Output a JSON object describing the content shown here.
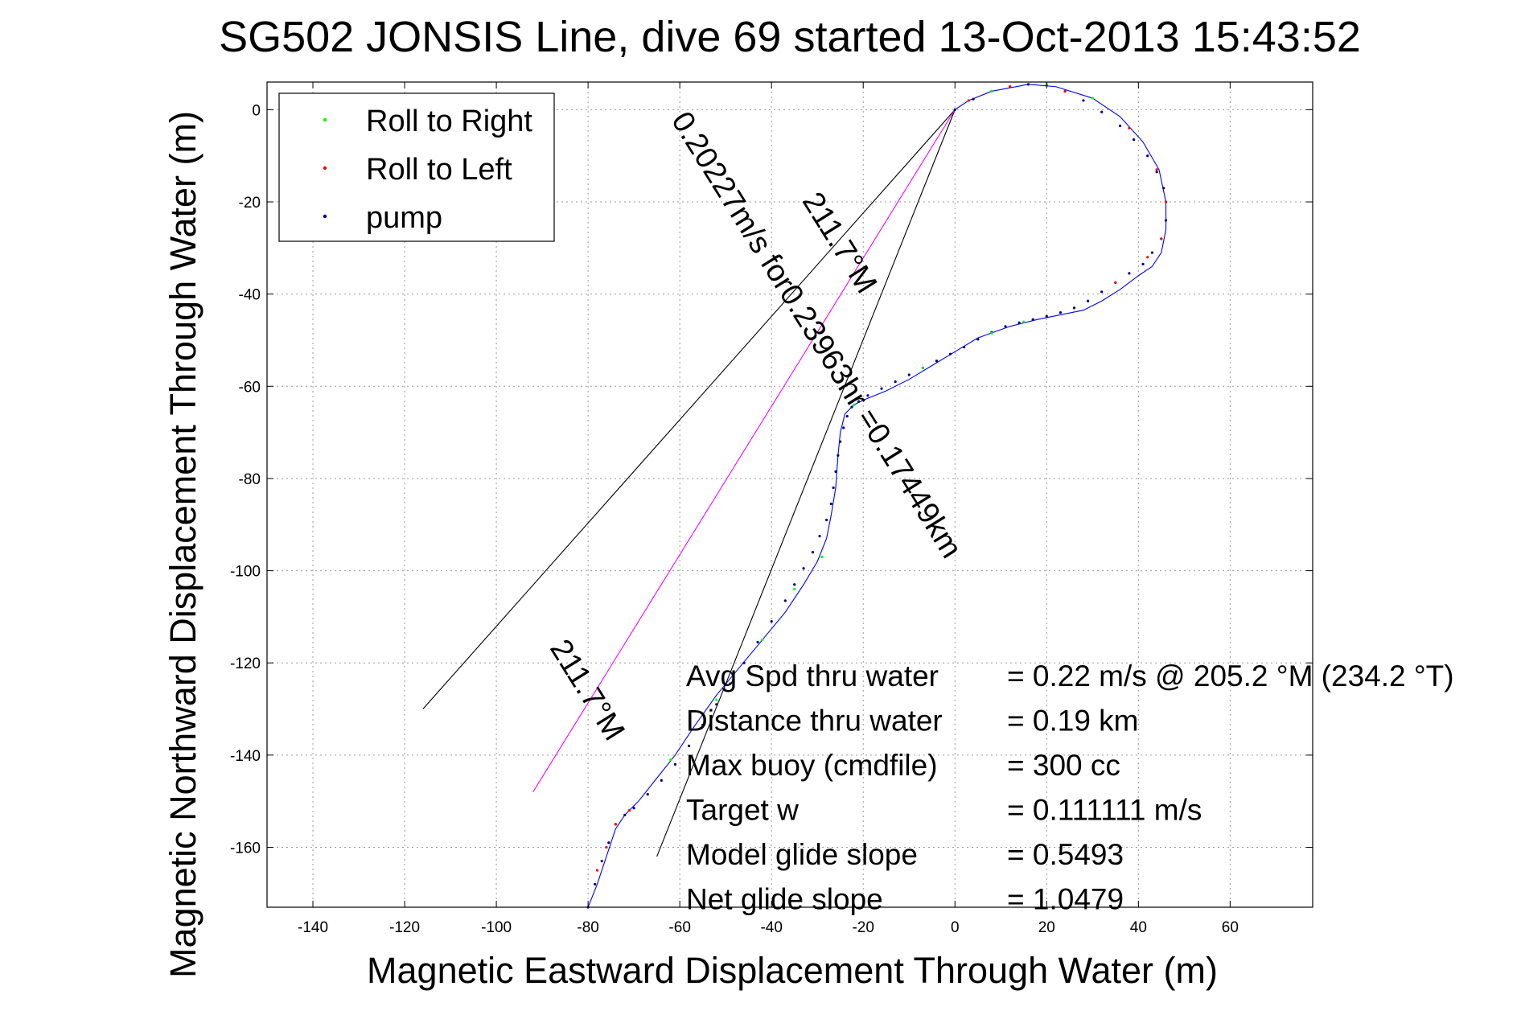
{
  "chart_data": {
    "type": "line",
    "title": "SG502 JONSIS Line, dive 69 started 13-Oct-2013 15:43:52",
    "xlabel": "Magnetic Eastward Displacement Through Water (m)",
    "ylabel": "Magnetic Northward Displacement Through Water (m)",
    "xlim": [
      -150,
      78
    ],
    "ylim": [
      -173,
      6
    ],
    "grid": true,
    "x_ticks": [
      -140,
      -120,
      -100,
      -80,
      -60,
      -40,
      -20,
      0,
      20,
      40,
      60
    ],
    "y_ticks": [
      0,
      -20,
      -40,
      -60,
      -80,
      -100,
      -120,
      -140,
      -160
    ],
    "x_tick_labels": [
      "-140",
      "-120",
      "-100",
      "-80",
      "-60",
      "-40",
      "-20",
      "0",
      "20",
      "40",
      "60"
    ],
    "y_tick_labels": [
      "0",
      "-20",
      "-40",
      "-60",
      "-80",
      "-100",
      "-120",
      "-140",
      "-160"
    ],
    "legend": {
      "placement": "top-left",
      "entries": [
        {
          "label": "Roll to Right",
          "color": "#00ff00"
        },
        {
          "label": "Roll to Left",
          "color": "#ff0000"
        },
        {
          "label": "pump",
          "color": "#000080"
        }
      ]
    },
    "series": [
      {
        "role": "track",
        "color": "#0000ff",
        "x": [
          0,
          3,
          8,
          16,
          22,
          30,
          36,
          41,
          44.5,
          46,
          46,
          45,
          43,
          40,
          36,
          32,
          28,
          23,
          18,
          12,
          5,
          0,
          -5,
          -10,
          -15,
          -20,
          -22,
          -24,
          -25,
          -25.5,
          -26,
          -27,
          -28,
          -30,
          -33,
          -37,
          -42,
          -47,
          -52,
          -57,
          -61,
          -65,
          -69,
          -72,
          -74,
          -76,
          -78,
          -80
        ],
        "y": [
          0,
          2,
          4,
          5.5,
          5,
          2.5,
          -1.5,
          -7,
          -13,
          -20,
          -26,
          -31,
          -34,
          -36,
          -39,
          -41.5,
          -43.5,
          -44.5,
          -45.5,
          -47,
          -49.5,
          -52.5,
          -55.5,
          -58.5,
          -61,
          -63,
          -64,
          -66,
          -70,
          -75,
          -82,
          -88,
          -93,
          -98,
          -103,
          -109,
          -115,
          -121,
          -127,
          -134,
          -140,
          -145,
          -150,
          -153,
          -156,
          -162,
          -168,
          -173
        ]
      },
      {
        "role": "pump",
        "color": "#000080",
        "x": [
          0,
          4,
          8,
          12,
          16,
          20,
          24,
          28,
          32,
          36,
          39,
          42,
          44,
          45.5,
          46,
          46,
          45,
          43,
          41,
          38,
          35,
          32,
          29,
          26,
          23,
          20,
          17,
          14,
          11,
          8,
          5,
          2,
          -1,
          -4,
          -7,
          -10,
          -13,
          -16,
          -19,
          -21,
          -22.5,
          -23.5,
          -24.3,
          -25,
          -25.5,
          -26,
          -26.5,
          -27,
          -28,
          -29.5,
          -31,
          -33,
          -35,
          -37,
          -40,
          -43,
          -46,
          -49,
          -52,
          -55,
          -58,
          -61,
          -64,
          -67,
          -70,
          -72,
          -74,
          -75.5,
          -77,
          -78.5,
          -80
        ],
        "y": [
          0,
          2.3,
          4,
          5,
          5.5,
          5.3,
          4,
          2,
          -0.5,
          -3.5,
          -6.5,
          -10,
          -13.5,
          -17,
          -20,
          -24,
          -28,
          -31,
          -33.5,
          -35.5,
          -37.5,
          -39.5,
          -41.5,
          -43,
          -44,
          -44.8,
          -45.5,
          -46.2,
          -47,
          -48.3,
          -49.8,
          -51.5,
          -53,
          -54.5,
          -56,
          -57.5,
          -59,
          -60.5,
          -62,
          -63.3,
          -64.5,
          -66.5,
          -69,
          -72,
          -75,
          -78.5,
          -82,
          -85.5,
          -89,
          -92.5,
          -96,
          -99.5,
          -103,
          -106.5,
          -111,
          -115.5,
          -120,
          -124.5,
          -129,
          -133.5,
          -138,
          -142,
          -145.5,
          -148.5,
          -151.5,
          -153,
          -155,
          -159,
          -163,
          -168,
          -173
        ]
      },
      {
        "role": "roll-right",
        "color": "#00ff00",
        "x": [
          8,
          20,
          30,
          15,
          8,
          -7,
          -22,
          -29,
          -35,
          -42,
          -52,
          -62
        ],
        "y": [
          4,
          5.5,
          2.5,
          -46,
          -48.5,
          -56,
          -64,
          -97,
          -104,
          -115,
          -128,
          -141
        ]
      },
      {
        "role": "roll-left",
        "color": "#ff0000",
        "x": [
          3,
          12,
          24,
          38,
          44,
          46,
          45,
          42,
          35,
          -71,
          -74,
          -76,
          -78
        ],
        "y": [
          2,
          5,
          4,
          -4,
          -13,
          -20,
          -28,
          -32,
          -37.5,
          -152,
          -155,
          -160,
          -165
        ]
      }
    ],
    "reference_lines": [
      {
        "role": "cone-edge-left",
        "color": "#000000",
        "x": [
          0,
          -116
        ],
        "y": [
          0,
          -130
        ]
      },
      {
        "role": "cone-edge-right",
        "color": "#000000",
        "x": [
          0,
          -65
        ],
        "y": [
          0,
          -162
        ]
      },
      {
        "role": "mean-heading",
        "color": "#ff00ff",
        "x": [
          0,
          -92
        ],
        "y": [
          0,
          -148
        ]
      }
    ],
    "annotations": [
      {
        "text": "211.7°M",
        "x": -27,
        "y": -30,
        "angle": 58
      },
      {
        "text": "0.20227m/s for0.23963hr =0.17449km",
        "x": -32,
        "y": -50,
        "angle": 58
      },
      {
        "text": "211.7°M",
        "x": -82,
        "y": -127,
        "angle": 58
      }
    ]
  },
  "stats": [
    {
      "label": "Avg Spd thru water",
      "value": "=  0.22 m/s @ 205.2 °M (234.2 °T)"
    },
    {
      "label": "Distance thru water",
      "value": "=  0.19 km"
    },
    {
      "label": "Max buoy (cmdfile)",
      "value": "= 300 cc"
    },
    {
      "label": "Target w",
      "value": "= 0.111111 m/s"
    },
    {
      "label": "Model glide slope",
      "value": "= 0.5493"
    },
    {
      "label": "Net glide slope",
      "value": "= 1.0479"
    }
  ]
}
